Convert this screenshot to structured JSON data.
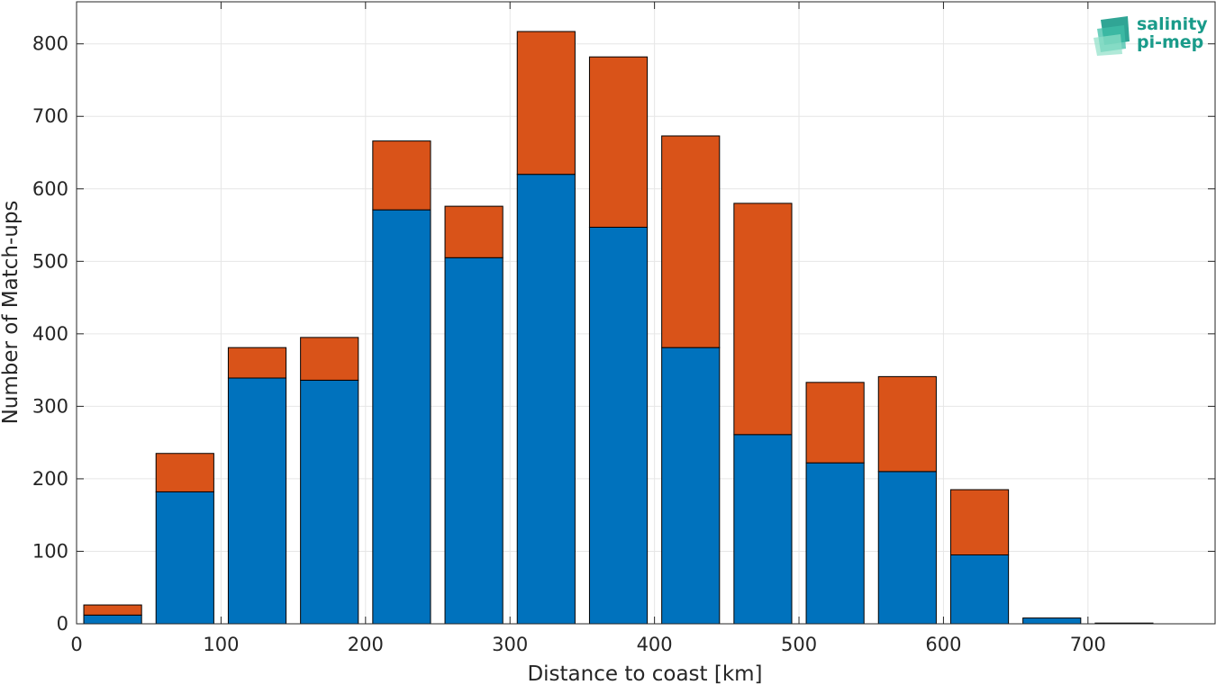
{
  "chart_data": {
    "type": "bar",
    "stacked": true,
    "title": "",
    "xlabel": "Distance to coast [km]",
    "ylabel": "Number of Match-ups",
    "xlim": [
      0,
      788
    ],
    "ylim": [
      0,
      858
    ],
    "x_ticks": [
      0,
      100,
      200,
      300,
      400,
      500,
      600,
      700
    ],
    "y_ticks": [
      0,
      100,
      200,
      300,
      400,
      500,
      600,
      700,
      800
    ],
    "grid": true,
    "bin_width": 50,
    "bar_width": 40,
    "x": [
      25,
      75,
      125,
      175,
      225,
      275,
      325,
      375,
      425,
      475,
      525,
      575,
      625,
      675,
      725
    ],
    "series": [
      {
        "color": "#0072bd",
        "values": [
          12,
          182,
          339,
          336,
          571,
          505,
          620,
          547,
          381,
          261,
          222,
          210,
          95,
          8,
          0
        ]
      },
      {
        "color": "#d95319",
        "values": [
          14,
          53,
          42,
          59,
          95,
          71,
          197,
          235,
          292,
          319,
          111,
          131,
          90,
          0,
          1
        ]
      }
    ]
  },
  "logo": {
    "line1": "salinity",
    "line2": "pi-mep",
    "color": "#1a9b8a"
  }
}
